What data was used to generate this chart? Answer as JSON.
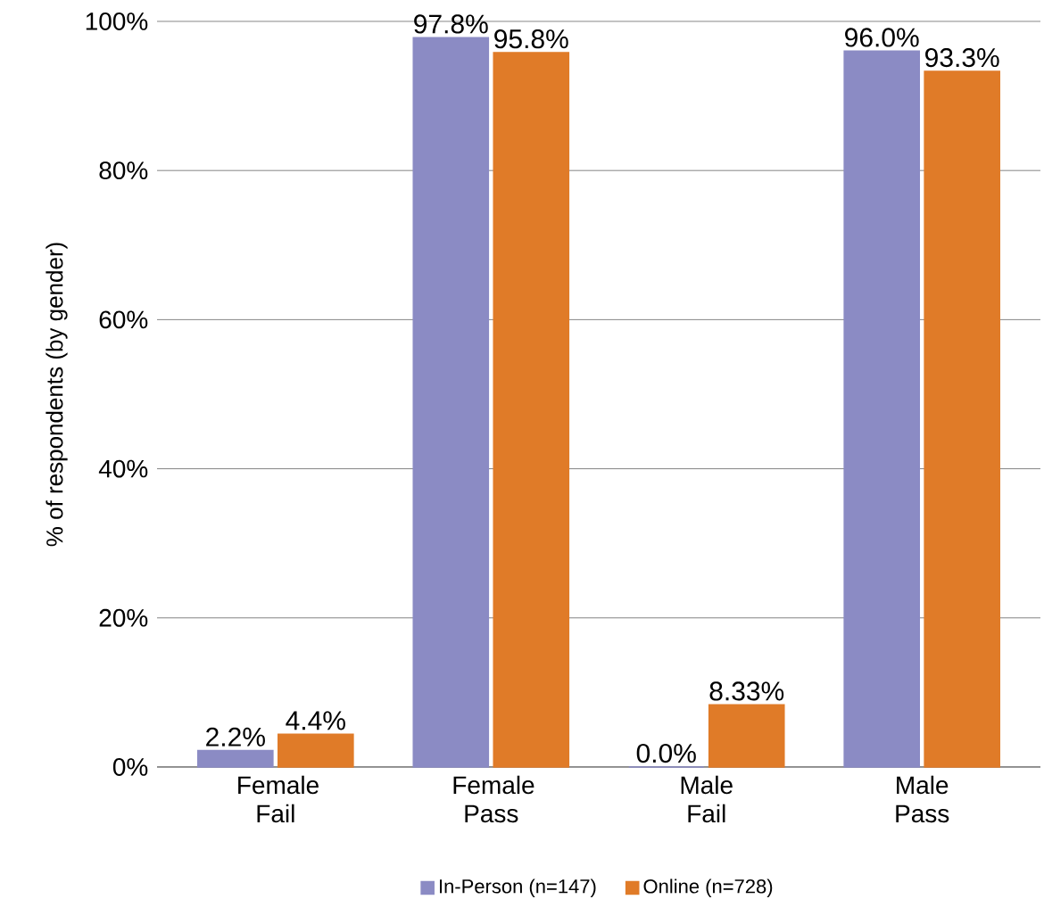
{
  "chart_data": {
    "type": "bar",
    "ylabel": "% of respondents (by gender)",
    "categories": [
      "Female Fail",
      "Female Pass",
      "Male Fail",
      "Male Pass"
    ],
    "series": [
      {
        "name": "In-Person (n=147)",
        "color": "#8b8bc4",
        "values": [
          2.2,
          97.8,
          0.0,
          96.0
        ],
        "value_labels": [
          "2.2%",
          "97.8%",
          "0.0%",
          "96.0%"
        ]
      },
      {
        "name": "Online (n=728)",
        "color": "#e07b28",
        "values": [
          4.4,
          95.8,
          8.33,
          93.3
        ],
        "value_labels": [
          "4.4%",
          "95.8%",
          "8.33%",
          "93.3%"
        ]
      }
    ],
    "ylim": [
      0,
      100
    ],
    "yticks": [
      {
        "value": 0,
        "label": "0%"
      },
      {
        "value": 20,
        "label": "20%"
      },
      {
        "value": 40,
        "label": "40%"
      },
      {
        "value": 60,
        "label": "60%"
      },
      {
        "value": 80,
        "label": "80%"
      },
      {
        "value": 100,
        "label": "100%"
      }
    ],
    "grid": "y",
    "legend": "bottom"
  }
}
